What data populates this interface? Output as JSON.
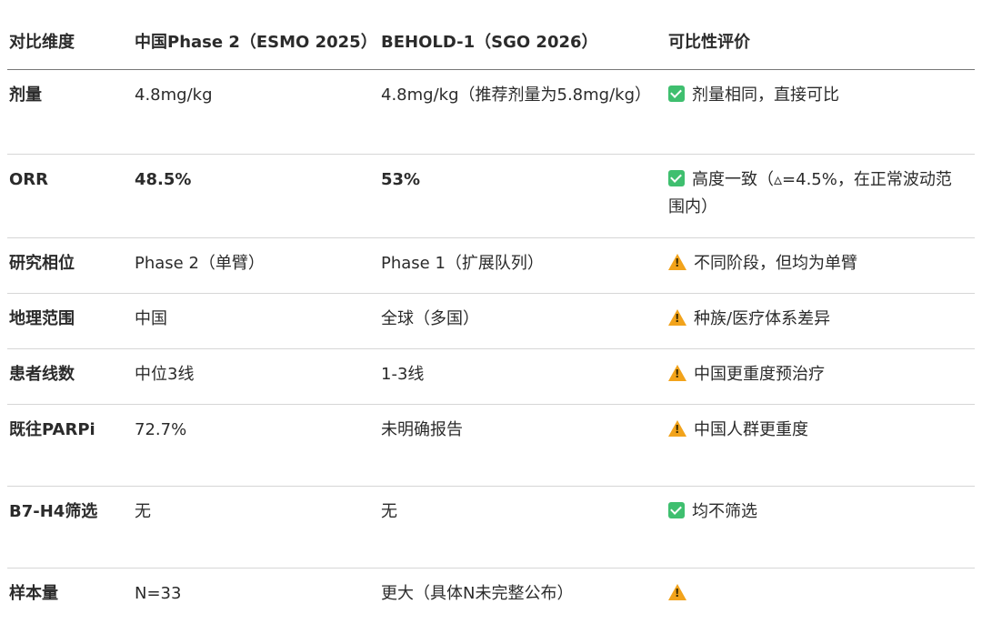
{
  "headers": [
    "对比维度",
    "中国Phase 2（ESMO 2025）",
    "BEHOLD-1（SGO 2026）",
    "可比性评价"
  ],
  "rows": [
    {
      "dim": "剂量",
      "china": "4.8mg/kg",
      "behold": "4.8mg/kg（推荐剂量为5.8mg/kg）",
      "icon": "check",
      "eval": "剂量相同，直接可比",
      "bold": false
    },
    {
      "dim": "ORR",
      "china": "48.5%",
      "behold": "53%",
      "icon": "check",
      "eval": "高度一致（▵=4.5%，在正常波动范围内）",
      "bold": true
    },
    {
      "dim": "研究相位",
      "china": "Phase 2（单臂）",
      "behold": "Phase 1（扩展队列）",
      "icon": "warning",
      "eval": "不同阶段，但均为单臂",
      "bold": false
    },
    {
      "dim": "地理范围",
      "china": "中国",
      "behold": "全球（多国）",
      "icon": "warning",
      "eval": "种族/医疗体系差异",
      "bold": false
    },
    {
      "dim": "患者线数",
      "china": "中位3线",
      "behold": "1-3线",
      "icon": "warning",
      "eval": "中国更重度预治疗",
      "bold": false
    },
    {
      "dim": "既往PARPi",
      "china": "72.7%",
      "behold": "未明确报告",
      "icon": "warning",
      "eval": "中国人群更重度",
      "bold": false
    },
    {
      "dim": "B7-H4筛选",
      "china": "无",
      "behold": "无",
      "icon": "check",
      "eval": "均不筛选",
      "bold": false
    },
    {
      "dim": "样本量",
      "china": "N=33",
      "behold": "更大（具体N未完整公布）",
      "icon": "warning",
      "eval": "",
      "bold": false
    }
  ],
  "colors": {
    "check": "#3fbf6f",
    "warning": "#f2a31b"
  }
}
